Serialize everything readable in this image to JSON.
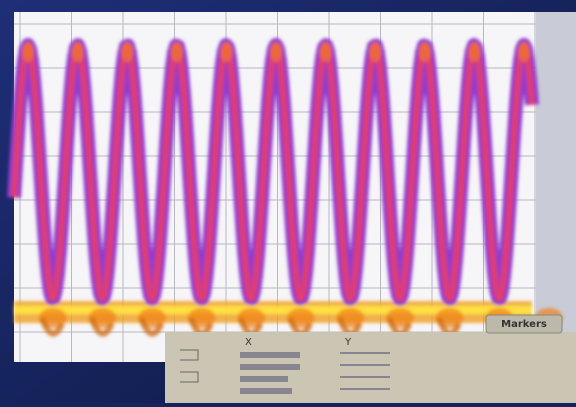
{
  "tab": {
    "label": "Markers"
  },
  "markers": {
    "headers": [
      "X",
      "Y"
    ]
  }
}
